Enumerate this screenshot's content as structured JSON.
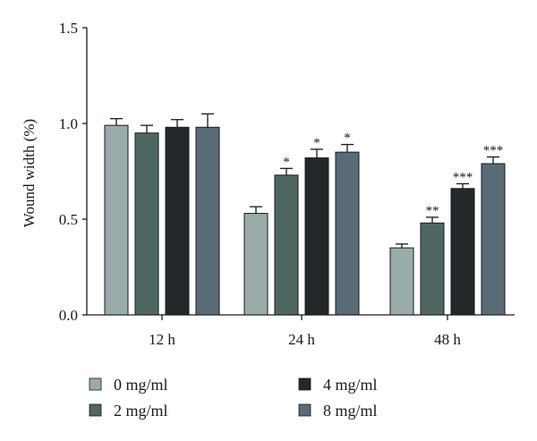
{
  "chart_data": {
    "type": "bar",
    "title": "",
    "xlabel": "",
    "ylabel": "Wound width (%)",
    "ylim": [
      0,
      1.5
    ],
    "yticks": [
      "0.0",
      "0.5",
      "1.0",
      "1.5"
    ],
    "yticks_values": [
      0,
      0.5,
      1.0,
      1.5
    ],
    "grid": false,
    "legend_position": "bottom",
    "categories": [
      "12 h",
      "24 h",
      "48 h"
    ],
    "series": [
      {
        "name": "0 mg/ml",
        "color": "#9aabab",
        "values": [
          0.99,
          0.53,
          0.35
        ],
        "errors": [
          0.035,
          0.035,
          0.02
        ],
        "significance": [
          "",
          "",
          ""
        ]
      },
      {
        "name": "2 mg/ml",
        "color": "#4f6763",
        "values": [
          0.95,
          0.73,
          0.48
        ],
        "errors": [
          0.04,
          0.035,
          0.03
        ],
        "significance": [
          "",
          "*",
          "**"
        ]
      },
      {
        "name": "4 mg/ml",
        "color": "#22282a",
        "values": [
          0.98,
          0.82,
          0.66
        ],
        "errors": [
          0.04,
          0.045,
          0.025
        ],
        "significance": [
          "",
          "*",
          "***"
        ]
      },
      {
        "name": "8 mg/ml",
        "color": "#596b76",
        "values": [
          0.98,
          0.85,
          0.79
        ],
        "errors": [
          0.07,
          0.04,
          0.035
        ],
        "significance": [
          "",
          "*",
          "***"
        ]
      }
    ]
  }
}
